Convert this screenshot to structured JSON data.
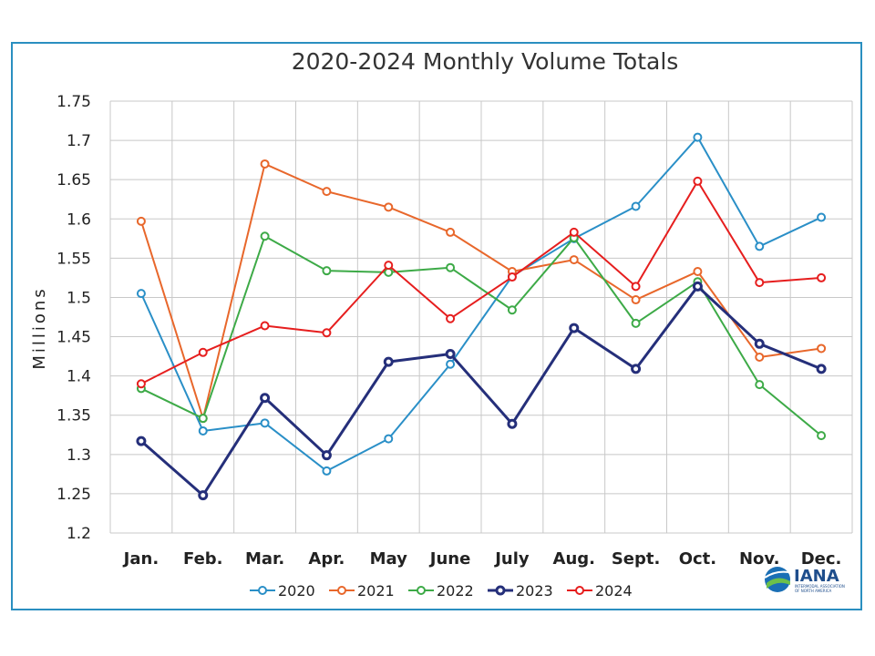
{
  "chart_data": {
    "type": "line",
    "title": "2020-2024 Monthly Volume Totals",
    "xlabel": "",
    "ylabel": "Millions",
    "categories": [
      "Jan.",
      "Feb.",
      "Mar.",
      "Apr.",
      "May",
      "June",
      "July",
      "Aug.",
      "Sept.",
      "Oct.",
      "Nov.",
      "Dec."
    ],
    "ylim": [
      1.2,
      1.75
    ],
    "yticks": [
      "1.2",
      "1.25",
      "1.3",
      "1.35",
      "1.4",
      "1.45",
      "1.5",
      "1.55",
      "1.6",
      "1.65",
      "1.7",
      "1.75"
    ],
    "grid": true,
    "legend_position": "bottom",
    "series": [
      {
        "name": "2020",
        "color": "#2a8fc7",
        "width": 2,
        "values": [
          1.505,
          1.33,
          1.34,
          1.279,
          1.32,
          1.415,
          1.527,
          1.575,
          1.616,
          1.704,
          1.565,
          1.602
        ]
      },
      {
        "name": "2021",
        "color": "#e8672b",
        "width": 2,
        "values": [
          1.597,
          1.346,
          1.67,
          1.635,
          1.615,
          1.583,
          1.533,
          1.548,
          1.497,
          1.533,
          1.424,
          1.435
        ]
      },
      {
        "name": "2022",
        "color": "#3daa47",
        "width": 2,
        "values": [
          1.384,
          1.346,
          1.578,
          1.534,
          1.532,
          1.538,
          1.484,
          1.576,
          1.467,
          1.52,
          1.389,
          1.324
        ]
      },
      {
        "name": "2023",
        "color": "#252f7a",
        "width": 3,
        "values": [
          1.317,
          1.248,
          1.372,
          1.299,
          1.418,
          1.428,
          1.339,
          1.461,
          1.409,
          1.514,
          1.441,
          1.409
        ]
      },
      {
        "name": "2024",
        "color": "#e61e1e",
        "width": 2,
        "values": [
          1.39,
          1.43,
          1.464,
          1.455,
          1.541,
          1.473,
          1.526,
          1.583,
          1.514,
          1.648,
          1.519,
          1.525
        ]
      }
    ]
  },
  "logo": {
    "name": "IANA",
    "subtitle_line1": "INTERMODAL ASSOCIATION",
    "subtitle_line2": "OF NORTH AMERICA"
  }
}
